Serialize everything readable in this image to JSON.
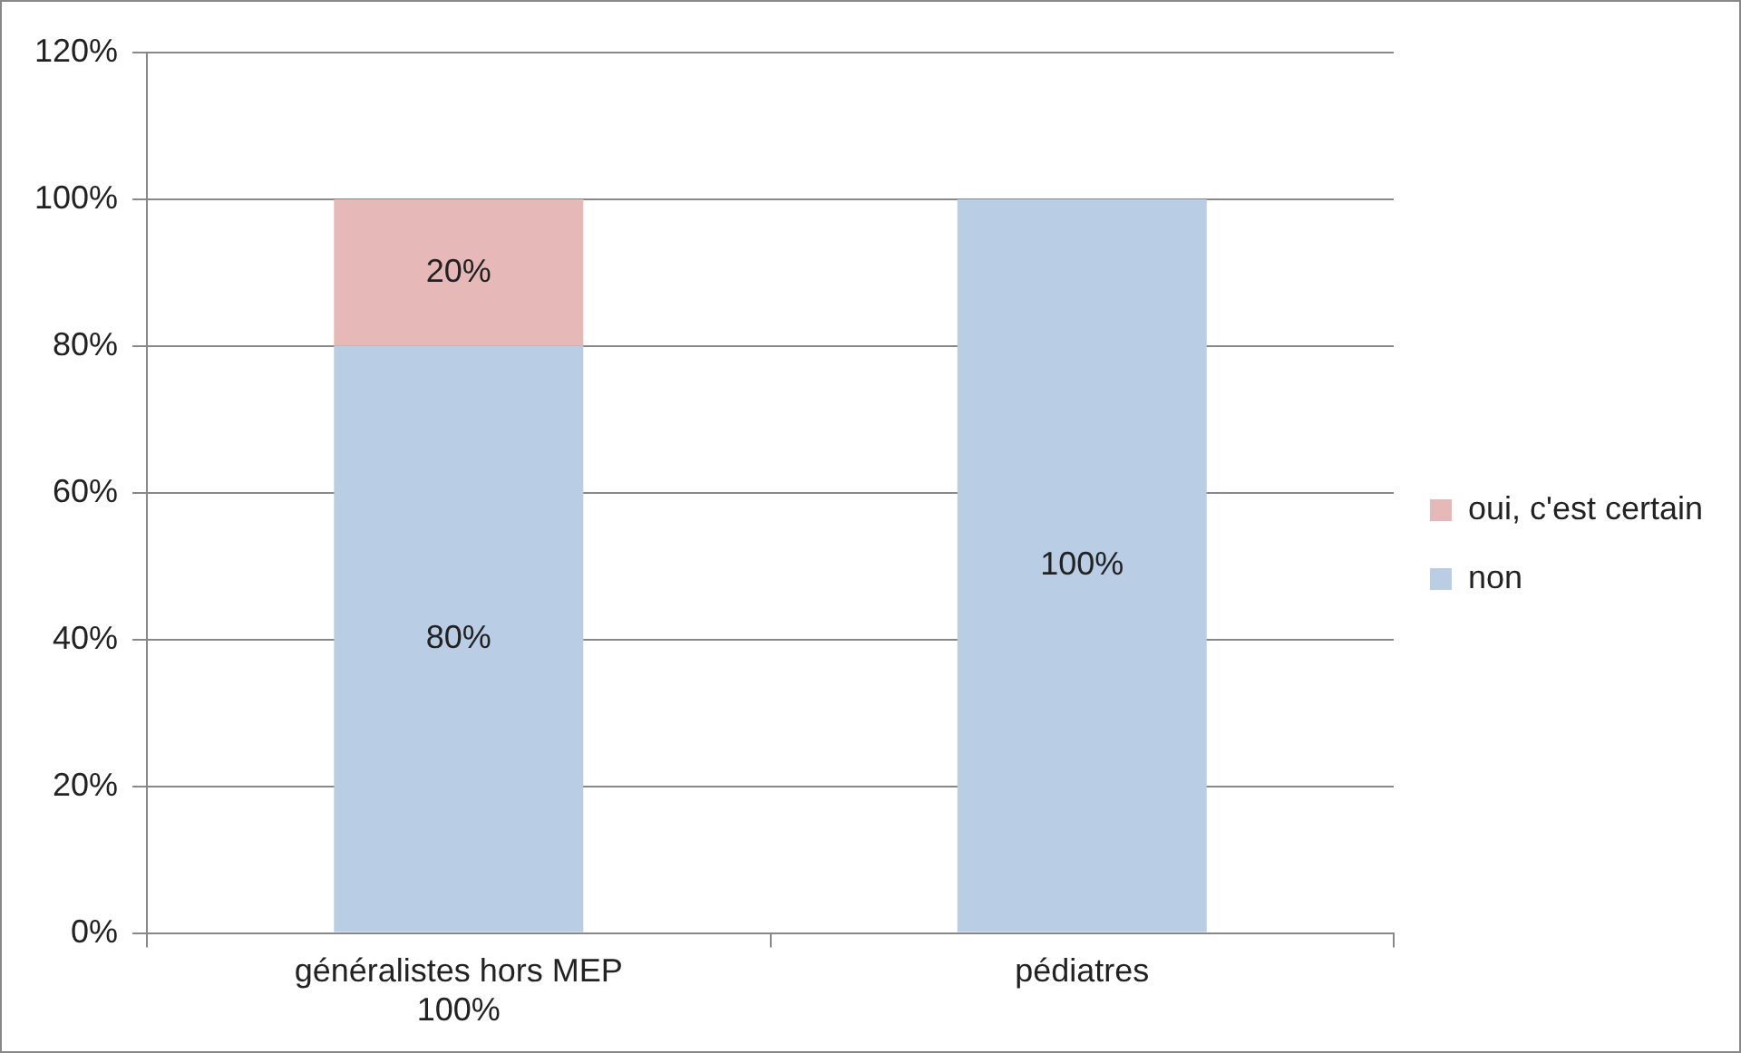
{
  "chart_data": {
    "type": "bar",
    "stacked": true,
    "categories": [
      "généralistes hors MEP\n100%",
      "pédiatres"
    ],
    "series": [
      {
        "name": "non",
        "color": "#b9cde5",
        "values": [
          80,
          100
        ],
        "value_labels": [
          "80%",
          "100%"
        ]
      },
      {
        "name": "oui, c'est certain",
        "color": "#e6b9b8",
        "values": [
          20,
          0
        ],
        "value_labels": [
          "20%",
          null
        ]
      }
    ],
    "ylim": [
      0,
      120
    ],
    "yticks": [
      {
        "value": 0,
        "label": "0%"
      },
      {
        "value": 20,
        "label": "20%"
      },
      {
        "value": 40,
        "label": "40%"
      },
      {
        "value": 60,
        "label": "60%"
      },
      {
        "value": 80,
        "label": "80%"
      },
      {
        "value": 100,
        "label": "100%"
      },
      {
        "value": 120,
        "label": "120%"
      }
    ],
    "grid": "y",
    "legend": "right"
  }
}
